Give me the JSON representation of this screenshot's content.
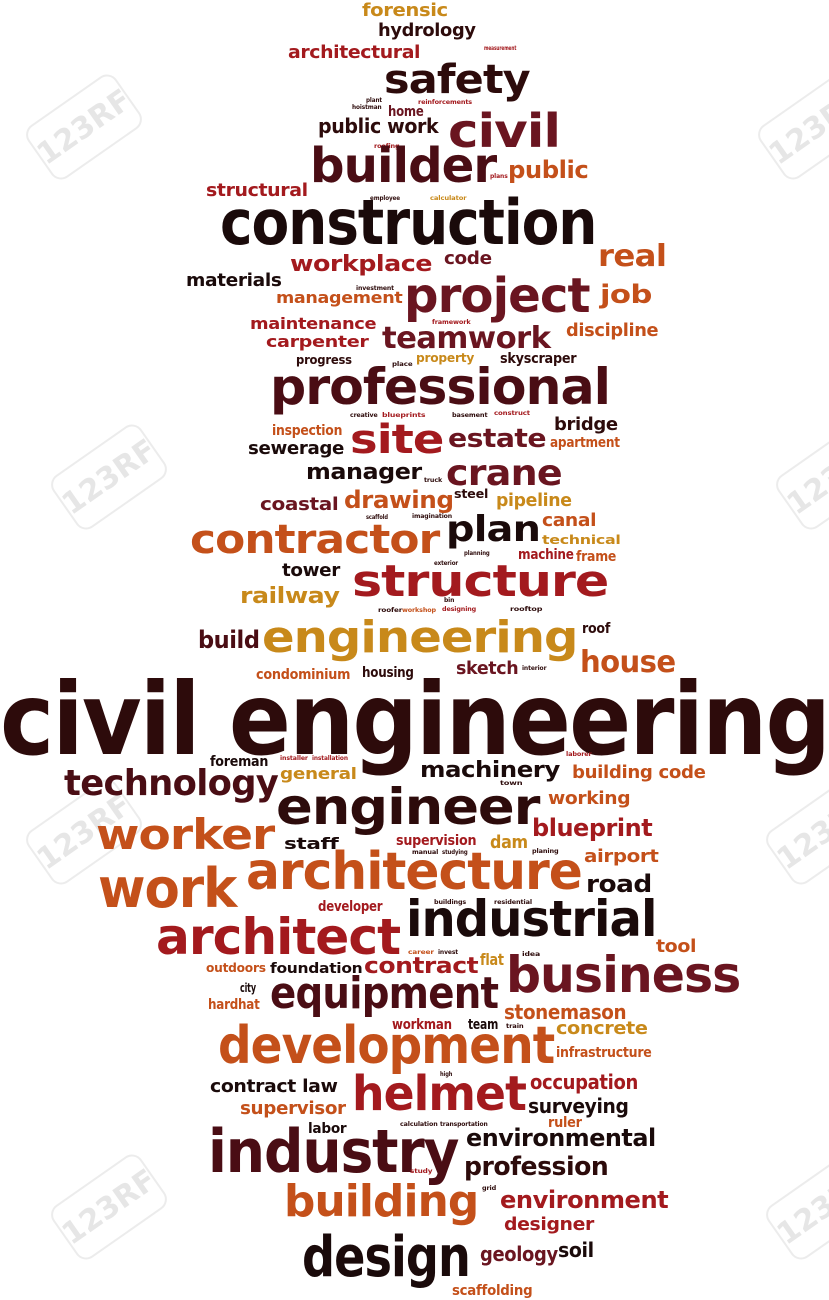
{
  "title": "civil engineering",
  "colors": {
    "dark": "#2d0b0b",
    "maroon": "#6a1520",
    "red": "#a31a1e",
    "orange": "#c4501a",
    "gold": "#c8891a",
    "black": "#1a0a0a"
  },
  "watermark_text": "123RF",
  "words": [
    {
      "t": "forensic",
      "c": "#c8891a"
    },
    {
      "t": "hydrology",
      "c": "#2d0b0b"
    },
    {
      "t": "architectural",
      "c": "#a31a1e"
    },
    {
      "t": "measurement",
      "c": "#a31a1e"
    },
    {
      "t": "safety",
      "c": "#2d0b0b"
    },
    {
      "t": "plant",
      "c": "#2d0b0b"
    },
    {
      "t": "hoistman",
      "c": "#2d0b0b"
    },
    {
      "t": "home",
      "c": "#6a1520"
    },
    {
      "t": "reinforcements",
      "c": "#a31a1e"
    },
    {
      "t": "civil",
      "c": "#6a1520"
    },
    {
      "t": "public work",
      "c": "#2d0b0b"
    },
    {
      "t": "roofing",
      "c": "#a31a1e"
    },
    {
      "t": "builder",
      "c": "#4a0d14"
    },
    {
      "t": "public",
      "c": "#c4501a"
    },
    {
      "t": "plans",
      "c": "#a31a1e"
    },
    {
      "t": "structural",
      "c": "#a31a1e"
    },
    {
      "t": "employee",
      "c": "#2d0b0b"
    },
    {
      "t": "calculator",
      "c": "#c8891a"
    },
    {
      "t": "construction",
      "c": "#1a0a0a"
    },
    {
      "t": "real",
      "c": "#c4501a"
    },
    {
      "t": "workplace",
      "c": "#a31a1e"
    },
    {
      "t": "code",
      "c": "#6a1520"
    },
    {
      "t": "materials",
      "c": "#1a0a0a"
    },
    {
      "t": "investment",
      "c": "#2d0b0b"
    },
    {
      "t": "project",
      "c": "#6a1520"
    },
    {
      "t": "job",
      "c": "#c4501a"
    },
    {
      "t": "management",
      "c": "#c4501a"
    },
    {
      "t": "maintenance",
      "c": "#a31a1e"
    },
    {
      "t": "framework",
      "c": "#a31a1e"
    },
    {
      "t": "discipline",
      "c": "#c4501a"
    },
    {
      "t": "carpenter",
      "c": "#a31a1e"
    },
    {
      "t": "teamwork",
      "c": "#6a1520"
    },
    {
      "t": "progress",
      "c": "#2d0b0b"
    },
    {
      "t": "place",
      "c": "#2d0b0b"
    },
    {
      "t": "property",
      "c": "#c8891a"
    },
    {
      "t": "skyscraper",
      "c": "#2d0b0b"
    },
    {
      "t": "professional",
      "c": "#4a0d14"
    },
    {
      "t": "creative",
      "c": "#2d0b0b"
    },
    {
      "t": "blueprints",
      "c": "#a31a1e"
    },
    {
      "t": "basement",
      "c": "#2d0b0b"
    },
    {
      "t": "construct",
      "c": "#a31a1e"
    },
    {
      "t": "inspection",
      "c": "#c4501a"
    },
    {
      "t": "site",
      "c": "#a31a1e"
    },
    {
      "t": "estate",
      "c": "#6a1520"
    },
    {
      "t": "bridge",
      "c": "#2d0b0b"
    },
    {
      "t": "sewerage",
      "c": "#1a0a0a"
    },
    {
      "t": "apartment",
      "c": "#c4501a"
    },
    {
      "t": "manager",
      "c": "#1a0a0a"
    },
    {
      "t": "truck",
      "c": "#2d0b0b"
    },
    {
      "t": "crane",
      "c": "#6a1520"
    },
    {
      "t": "coastal",
      "c": "#6a1520"
    },
    {
      "t": "drawing",
      "c": "#c4501a"
    },
    {
      "t": "steel",
      "c": "#2d0b0b"
    },
    {
      "t": "pipeline",
      "c": "#c8891a"
    },
    {
      "t": "scaffold",
      "c": "#2d0b0b"
    },
    {
      "t": "imagination",
      "c": "#2d0b0b"
    },
    {
      "t": "contractor",
      "c": "#c4501a"
    },
    {
      "t": "plan",
      "c": "#1a0a0a"
    },
    {
      "t": "canal",
      "c": "#c4501a"
    },
    {
      "t": "technical",
      "c": "#c8891a"
    },
    {
      "t": "planning",
      "c": "#2d0b0b"
    },
    {
      "t": "machine",
      "c": "#a31a1e"
    },
    {
      "t": "frame",
      "c": "#c4501a"
    },
    {
      "t": "exterior",
      "c": "#2d0b0b"
    },
    {
      "t": "tower",
      "c": "#1a0a0a"
    },
    {
      "t": "structure",
      "c": "#a31a1e"
    },
    {
      "t": "railway",
      "c": "#c8891a"
    },
    {
      "t": "bin",
      "c": "#2d0b0b"
    },
    {
      "t": "roofer",
      "c": "#2d0b0b"
    },
    {
      "t": "workshop",
      "c": "#c4501a"
    },
    {
      "t": "designing",
      "c": "#a31a1e"
    },
    {
      "t": "rooftop",
      "c": "#2d0b0b"
    },
    {
      "t": "build",
      "c": "#4a0d14"
    },
    {
      "t": "engineering",
      "c": "#c8891a"
    },
    {
      "t": "roof",
      "c": "#2d0b0b"
    },
    {
      "t": "condominium",
      "c": "#c4501a"
    },
    {
      "t": "housing",
      "c": "#2d0b0b"
    },
    {
      "t": "sketch",
      "c": "#6a1520"
    },
    {
      "t": "interior",
      "c": "#2d0b0b"
    },
    {
      "t": "house",
      "c": "#c4501a"
    },
    {
      "t": "civil engineering",
      "c": "#2d0b0b"
    },
    {
      "t": "foreman",
      "c": "#1a0a0a"
    },
    {
      "t": "installer",
      "c": "#a31a1e"
    },
    {
      "t": "installation",
      "c": "#a31a1e"
    },
    {
      "t": "laborer",
      "c": "#a31a1e"
    },
    {
      "t": "technology",
      "c": "#4a0d14"
    },
    {
      "t": "general",
      "c": "#c8891a"
    },
    {
      "t": "machinery",
      "c": "#1a0a0a"
    },
    {
      "t": "building code",
      "c": "#c4501a"
    },
    {
      "t": "town",
      "c": "#2d0b0b"
    },
    {
      "t": "engineer",
      "c": "#2d0b0b"
    },
    {
      "t": "working",
      "c": "#c4501a"
    },
    {
      "t": "worker",
      "c": "#c4501a"
    },
    {
      "t": "blueprint",
      "c": "#a31a1e"
    },
    {
      "t": "staff",
      "c": "#1a0a0a"
    },
    {
      "t": "supervision",
      "c": "#a31a1e"
    },
    {
      "t": "dam",
      "c": "#c8891a"
    },
    {
      "t": "manual",
      "c": "#2d0b0b"
    },
    {
      "t": "studying",
      "c": "#2d0b0b"
    },
    {
      "t": "planing",
      "c": "#2d0b0b"
    },
    {
      "t": "airport",
      "c": "#c4501a"
    },
    {
      "t": "work",
      "c": "#c4501a"
    },
    {
      "t": "architecture",
      "c": "#c4501a"
    },
    {
      "t": "road",
      "c": "#1a0a0a"
    },
    {
      "t": "developer",
      "c": "#a31a1e"
    },
    {
      "t": "buildings",
      "c": "#2d0b0b"
    },
    {
      "t": "residential",
      "c": "#2d0b0b"
    },
    {
      "t": "industrial",
      "c": "#1a0a0a"
    },
    {
      "t": "architect",
      "c": "#a31a1e"
    },
    {
      "t": "tool",
      "c": "#c4501a"
    },
    {
      "t": "career",
      "c": "#c4501a"
    },
    {
      "t": "invest",
      "c": "#2d0b0b"
    },
    {
      "t": "flat",
      "c": "#c8891a"
    },
    {
      "t": "idea",
      "c": "#2d0b0b"
    },
    {
      "t": "outdoors",
      "c": "#c4501a"
    },
    {
      "t": "foundation",
      "c": "#1a0a0a"
    },
    {
      "t": "contract",
      "c": "#a31a1e"
    },
    {
      "t": "business",
      "c": "#6a1520"
    },
    {
      "t": "city",
      "c": "#1a0a0a"
    },
    {
      "t": "equipment",
      "c": "#4a0d14"
    },
    {
      "t": "hardhat",
      "c": "#c4501a"
    },
    {
      "t": "stonemason",
      "c": "#c4501a"
    },
    {
      "t": "workman",
      "c": "#a31a1e"
    },
    {
      "t": "team",
      "c": "#1a0a0a"
    },
    {
      "t": "train",
      "c": "#2d0b0b"
    },
    {
      "t": "concrete",
      "c": "#c8891a"
    },
    {
      "t": "development",
      "c": "#c4501a"
    },
    {
      "t": "infrastructure",
      "c": "#c4501a"
    },
    {
      "t": "high",
      "c": "#2d0b0b"
    },
    {
      "t": "contract law",
      "c": "#1a0a0a"
    },
    {
      "t": "helmet",
      "c": "#a31a1e"
    },
    {
      "t": "occupation",
      "c": "#a31a1e"
    },
    {
      "t": "supervisor",
      "c": "#c4501a"
    },
    {
      "t": "surveying",
      "c": "#1a0a0a"
    },
    {
      "t": "labor",
      "c": "#1a0a0a"
    },
    {
      "t": "calculation",
      "c": "#2d0b0b"
    },
    {
      "t": "transportation",
      "c": "#2d0b0b"
    },
    {
      "t": "ruler",
      "c": "#c4501a"
    },
    {
      "t": "industry",
      "c": "#4a0d14"
    },
    {
      "t": "environmental",
      "c": "#1a0a0a"
    },
    {
      "t": "study",
      "c": "#a31a1e"
    },
    {
      "t": "profession",
      "c": "#2d0b0b"
    },
    {
      "t": "grid",
      "c": "#2d0b0b"
    },
    {
      "t": "building",
      "c": "#c4501a"
    },
    {
      "t": "environment",
      "c": "#a31a1e"
    },
    {
      "t": "designer",
      "c": "#a31a1e"
    },
    {
      "t": "design",
      "c": "#1a0a0a"
    },
    {
      "t": "geology",
      "c": "#6a1520"
    },
    {
      "t": "soil",
      "c": "#1a0a0a"
    },
    {
      "t": "scaffolding",
      "c": "#c4501a"
    }
  ]
}
